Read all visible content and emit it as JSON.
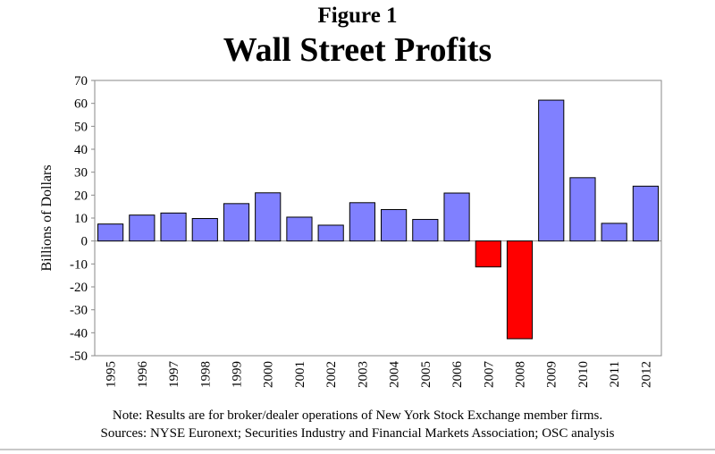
{
  "figure_label": "Figure 1",
  "title": "Wall Street Profits",
  "note": "Note: Results are for broker/dealer operations of New York Stock Exchange member firms.",
  "sources": "Sources:  NYSE Euronext; Securities Industry and Financial Markets Association; OSC analysis",
  "colors": {
    "positive": "#8080ff",
    "negative": "#ff0000"
  },
  "chart_data": {
    "type": "bar",
    "title": "Wall Street Profits",
    "xlabel": "",
    "ylabel": "Billions of Dollars",
    "ylim": [
      -50,
      70
    ],
    "yticks": [
      70,
      60,
      50,
      40,
      30,
      20,
      10,
      0,
      -10,
      -20,
      -30,
      -40,
      -50
    ],
    "grid": false,
    "categories": [
      "1995",
      "1996",
      "1997",
      "1998",
      "1999",
      "2000",
      "2001",
      "2002",
      "2003",
      "2004",
      "2005",
      "2006",
      "2007",
      "2008",
      "2009",
      "2010",
      "2011",
      "2012"
    ],
    "values": [
      7.4,
      11.3,
      12.2,
      9.8,
      16.3,
      21.0,
      10.4,
      6.9,
      16.7,
      13.7,
      9.4,
      20.9,
      -11.3,
      -42.6,
      61.4,
      27.6,
      7.7,
      23.9
    ]
  }
}
